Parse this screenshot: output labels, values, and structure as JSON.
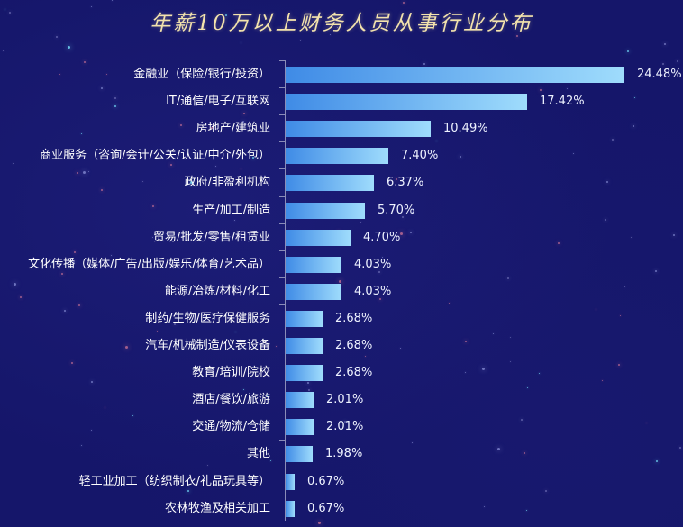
{
  "title": "年薪10万以上财务人员从事行业分布",
  "chart_data": {
    "type": "bar",
    "orientation": "horizontal",
    "title": "年薪10万以上财务人员从事行业分布",
    "xlabel": "",
    "ylabel": "",
    "grid": false,
    "legend": null,
    "categories": [
      "金融业（保险/银行/投资）",
      "IT/通信/电子/互联网",
      "房地产/建筑业",
      "商业服务（咨询/会计/公关/认证/中介/外包）",
      "政府/非盈利机构",
      "生产/加工/制造",
      "贸易/批发/零售/租赁业",
      "文化传播（媒体/广告/出版/娱乐/体育/艺术品）",
      "能源/冶炼/材料/化工",
      "制药/生物/医疗保健服务",
      "汽车/机械制造/仪表设备",
      "教育/培训/院校",
      "酒店/餐饮/旅游",
      "交通/物流/仓储",
      "其他",
      "轻工业加工（纺织制衣/礼品玩具等）",
      "农林牧渔及相关加工"
    ],
    "values": [
      24.48,
      17.42,
      10.49,
      7.4,
      6.37,
      5.7,
      4.7,
      4.03,
      4.03,
      2.68,
      2.68,
      2.68,
      2.01,
      2.01,
      1.98,
      0.67,
      0.67
    ],
    "value_labels": [
      "24.48%",
      "17.42%",
      "10.49%",
      "7.40%",
      "6.37%",
      "5.70%",
      "4.70%",
      "4.03%",
      "4.03%",
      "2.68%",
      "2.68%",
      "2.68%",
      "2.01%",
      "2.01%",
      "1.98%",
      "0.67%",
      "0.67%"
    ],
    "unit": "%",
    "colors": {
      "bar_gradient_start": "#3f8be6",
      "bar_gradient_end": "#9fdcfc",
      "background": "#15166a",
      "title": "#f3e3ad",
      "label_text": "#ffffff"
    }
  }
}
